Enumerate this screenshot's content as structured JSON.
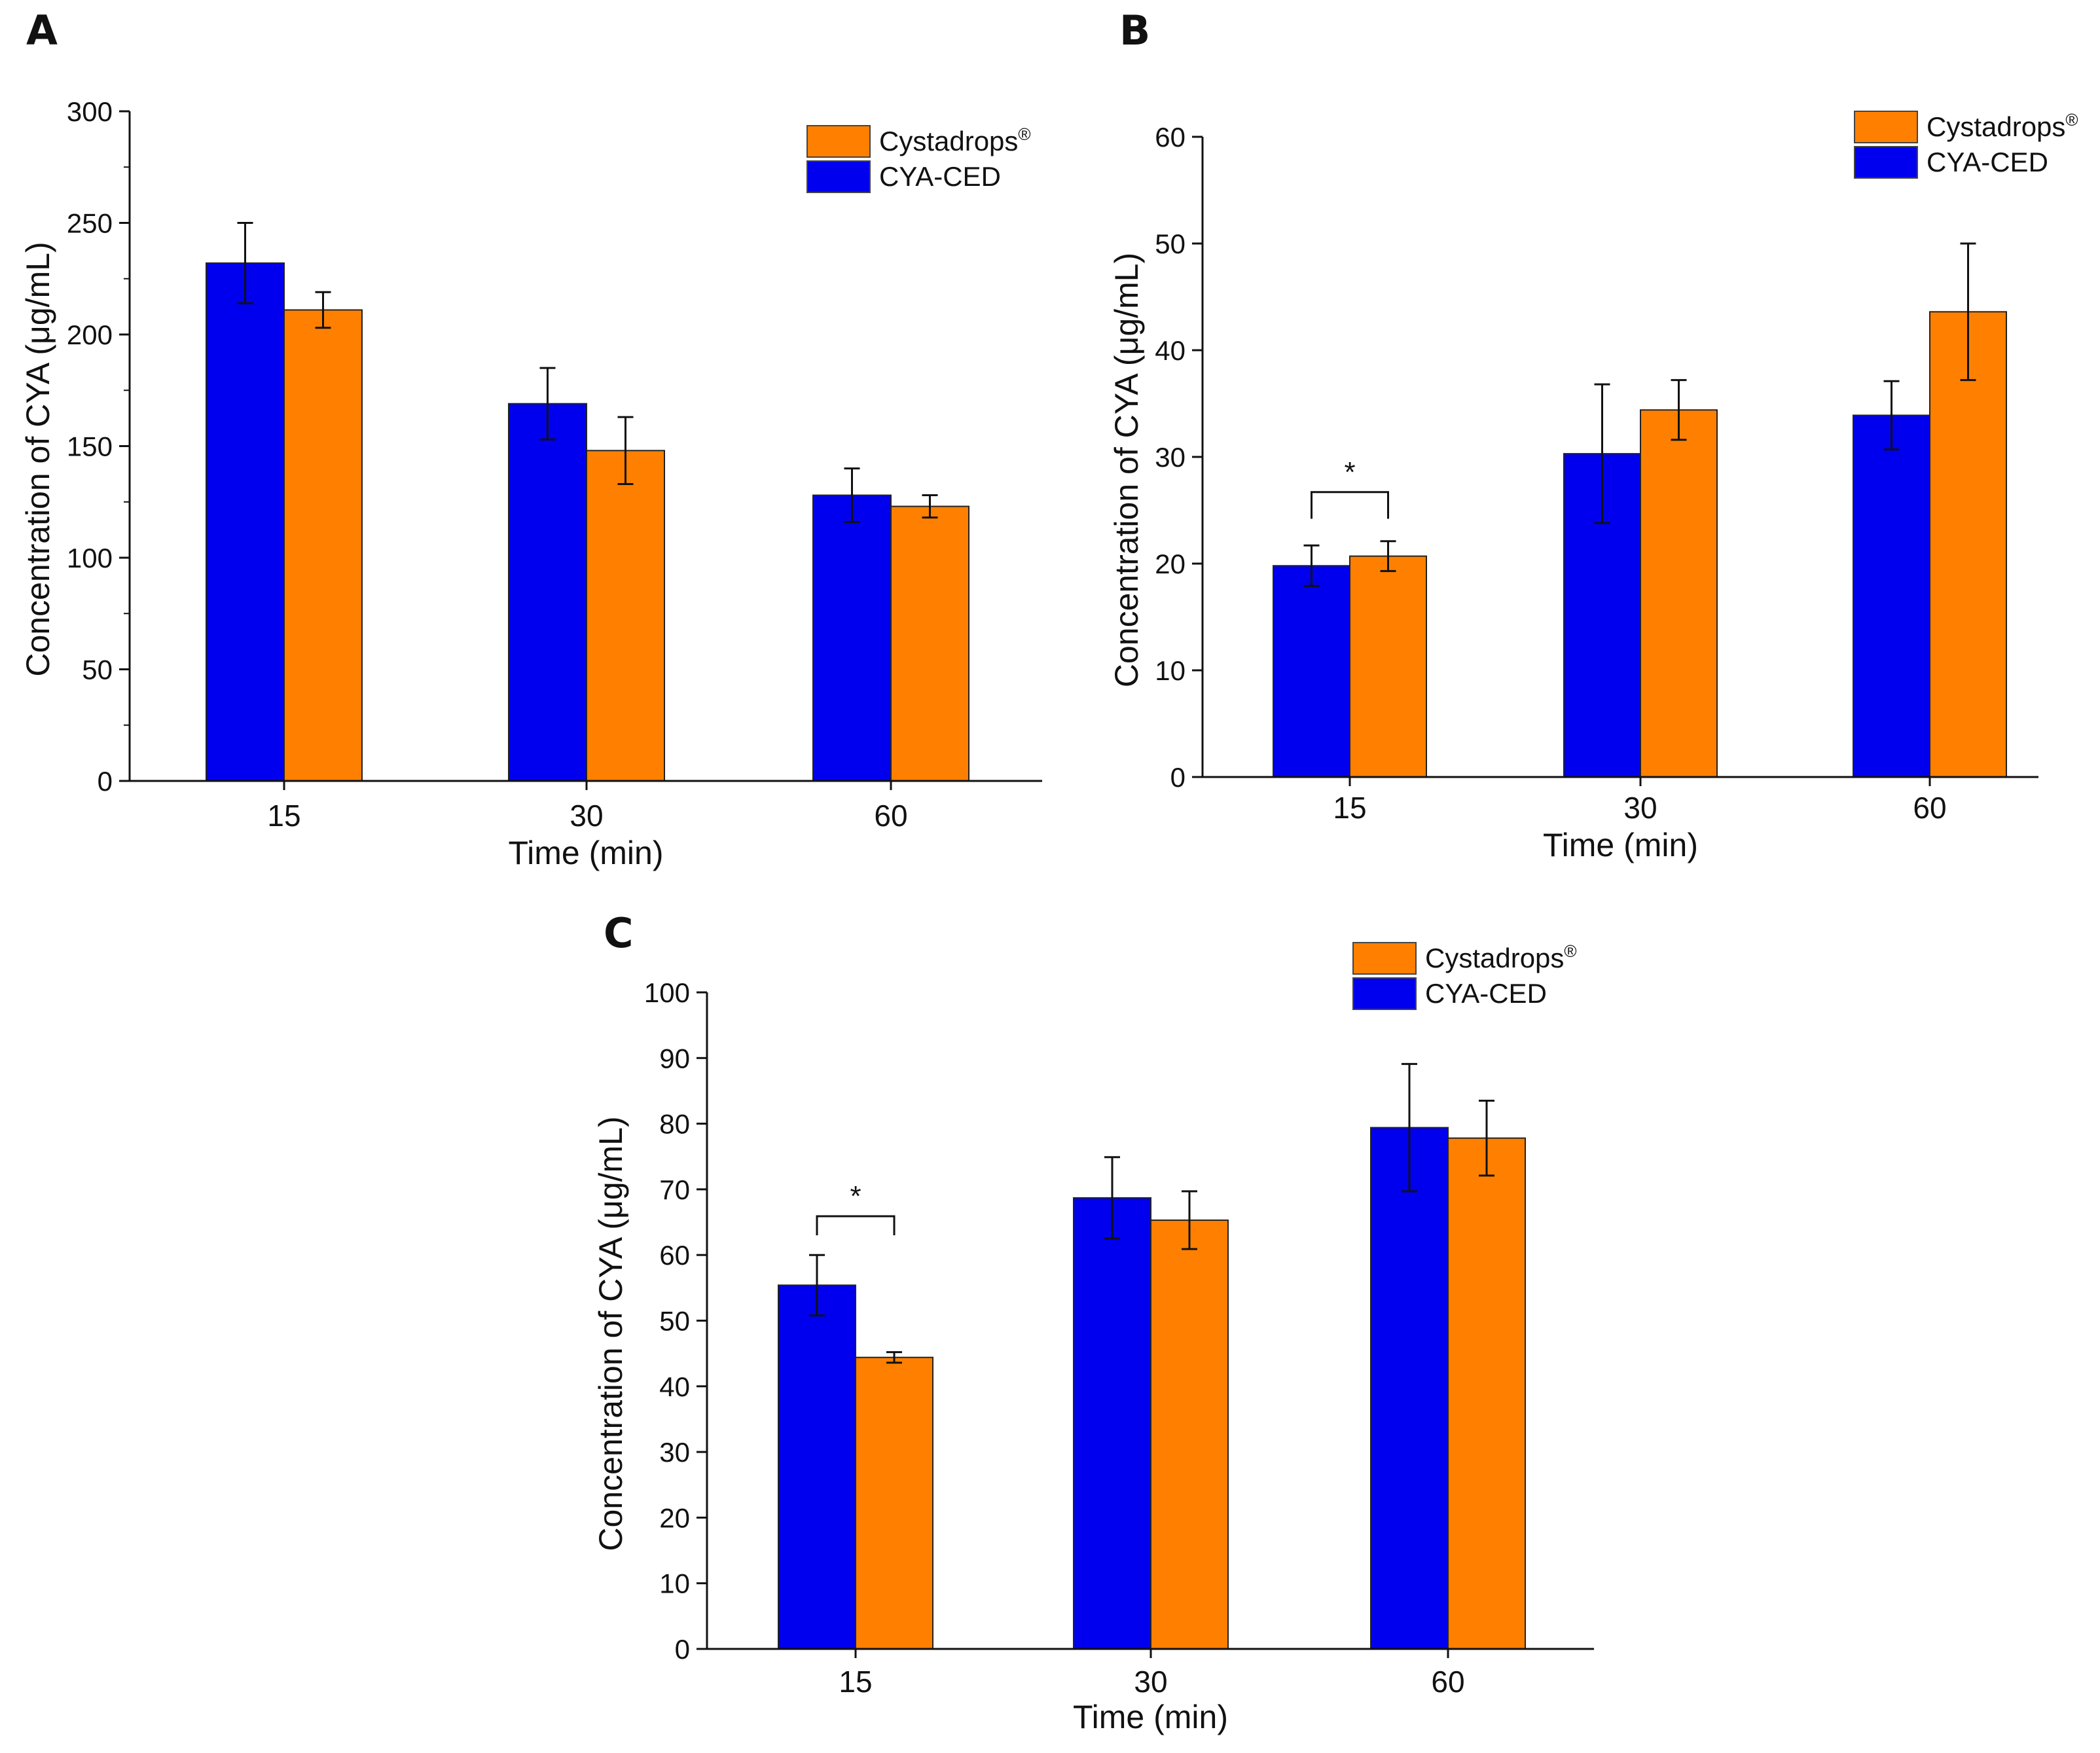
{
  "colors": {
    "CYA-CED": "#0000ee",
    "Cystadrops": "#ff8000"
  },
  "chart_data": [
    {
      "panel": "A",
      "type": "bar",
      "categories": [
        "15",
        "30",
        "60"
      ],
      "xlabel": "Time (min)",
      "ylabel": "Concentration of CYA (μg/mL)",
      "ylim": [
        0,
        300
      ],
      "yticks": [
        "0",
        "50",
        "100",
        "150",
        "200",
        "250",
        "300"
      ],
      "legend": {
        "position": "top-right",
        "entries": [
          "Cystadrops®",
          "CYA-CED"
        ]
      },
      "series": [
        {
          "name": "CYA-CED",
          "values": [
            232,
            169,
            128
          ],
          "errors": [
            18,
            16,
            12
          ]
        },
        {
          "name": "Cystadrops®",
          "values": [
            211,
            148,
            123
          ],
          "errors": [
            8,
            15,
            5
          ]
        }
      ],
      "annotations": []
    },
    {
      "panel": "B",
      "type": "bar",
      "categories": [
        "15",
        "30",
        "60"
      ],
      "xlabel": "Time (min)",
      "ylabel": "Concentration of CYA (μg/mL)",
      "ylim": [
        0,
        60
      ],
      "yticks": [
        "0",
        "10",
        "20",
        "30",
        "40",
        "50",
        "60"
      ],
      "legend": {
        "position": "top-right",
        "entries": [
          "Cystadrops®",
          "CYA-CED"
        ]
      },
      "series": [
        {
          "name": "CYA-CED",
          "values": [
            19.8,
            30.3,
            33.9
          ],
          "errors": [
            1.9,
            6.5,
            3.2
          ]
        },
        {
          "name": "Cystadrops®",
          "values": [
            20.7,
            34.4,
            43.6
          ],
          "errors": [
            1.4,
            2.8,
            6.4
          ]
        }
      ],
      "annotations": [
        {
          "text": "*",
          "category": "15",
          "bracket_top": 26.7,
          "bracket_bottom": 24.2
        }
      ]
    },
    {
      "panel": "C",
      "type": "bar",
      "categories": [
        "15",
        "30",
        "60"
      ],
      "xlabel": "Time (min)",
      "ylabel": "Concentration of CYA (μg/mL)",
      "ylim": [
        0,
        100
      ],
      "yticks": [
        "0",
        "10",
        "20",
        "30",
        "40",
        "50",
        "60",
        "70",
        "80",
        "90",
        "100"
      ],
      "legend": {
        "position": "top-right",
        "entries": [
          "Cystadrops®",
          "CYA-CED"
        ]
      },
      "series": [
        {
          "name": "CYA-CED",
          "values": [
            55.4,
            68.7,
            79.4
          ],
          "errors": [
            4.6,
            6.2,
            9.7
          ]
        },
        {
          "name": "Cystadrops®",
          "values": [
            44.4,
            65.3,
            77.8
          ],
          "errors": [
            0.8,
            4.4,
            5.7
          ]
        }
      ],
      "annotations": [
        {
          "text": "*",
          "category": "15",
          "bracket_top": 65.9,
          "bracket_bottom": 63.0
        }
      ]
    }
  ]
}
